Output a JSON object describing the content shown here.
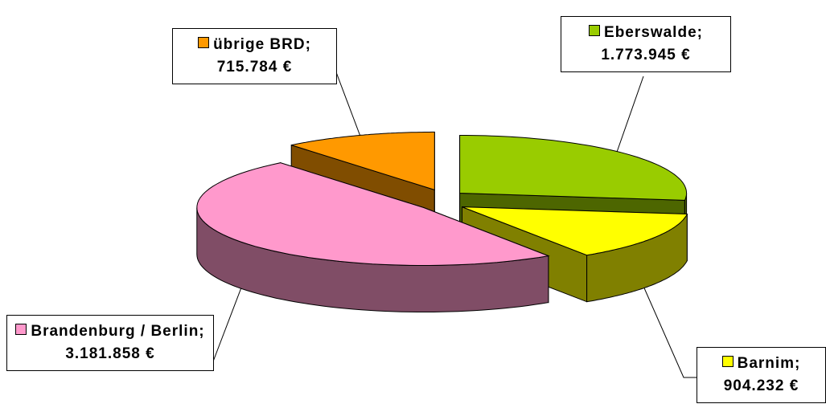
{
  "chart_data": {
    "type": "pie3d",
    "categories": [
      "Eberswalde;",
      "Barnim;",
      "Brandenburg / Berlin;",
      "übrige BRD;"
    ],
    "values": [
      1773945,
      904232,
      3181858,
      715784
    ],
    "value_labels": [
      "1.773.945 €",
      "904.232 €",
      "3.181.858 €",
      "715.784 €"
    ],
    "colors": [
      "#99cc00",
      "#ffff00",
      "#ff99cc",
      "#ff9900"
    ]
  }
}
